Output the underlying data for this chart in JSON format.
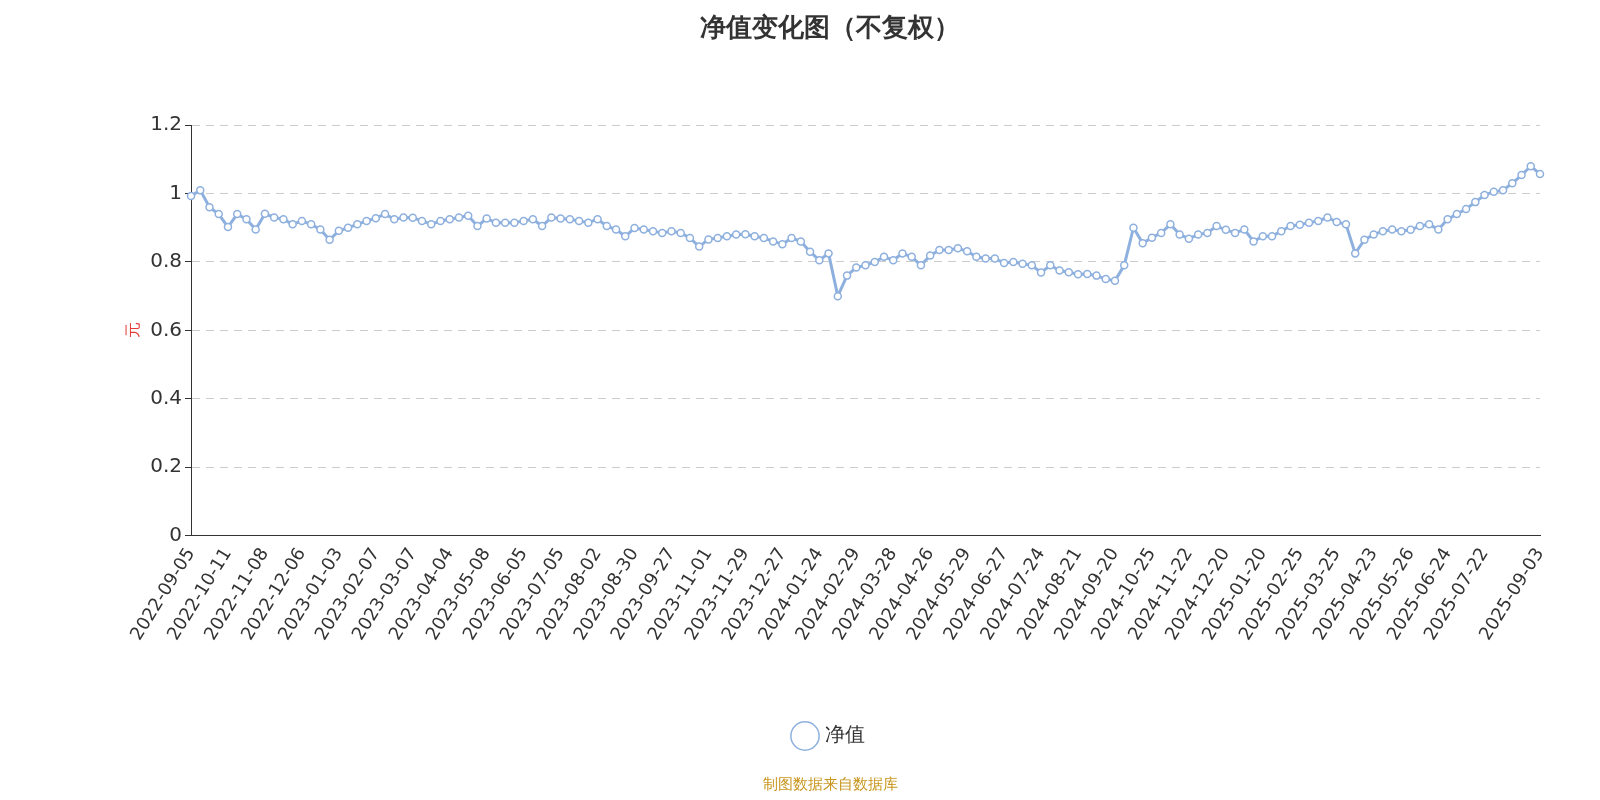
{
  "chart_data": {
    "type": "line",
    "title": "净值变化图（不复权）",
    "ylabel": "元",
    "categories": [
      "2022-09-05",
      null,
      null,
      null,
      "2022-10-11",
      null,
      null,
      null,
      "2022-11-08",
      null,
      null,
      null,
      "2022-12-06",
      null,
      null,
      null,
      "2023-01-03",
      null,
      null,
      null,
      "2023-02-07",
      null,
      null,
      null,
      "2023-03-07",
      null,
      null,
      null,
      "2023-04-04",
      null,
      null,
      null,
      "2023-05-08",
      null,
      null,
      null,
      "2023-06-05",
      null,
      null,
      null,
      "2023-07-05",
      null,
      null,
      null,
      "2023-08-02",
      null,
      null,
      null,
      "2023-08-30",
      null,
      null,
      null,
      "2023-09-27",
      null,
      null,
      null,
      "2023-11-01",
      null,
      null,
      null,
      "2023-11-29",
      null,
      null,
      null,
      "2023-12-27",
      null,
      null,
      null,
      "2024-01-24",
      null,
      null,
      null,
      "2024-02-29",
      null,
      null,
      null,
      "2024-03-28",
      null,
      null,
      null,
      "2024-04-26",
      null,
      null,
      null,
      "2024-05-29",
      null,
      null,
      null,
      "2024-06-27",
      null,
      null,
      null,
      "2024-07-24",
      null,
      null,
      null,
      "2024-08-21",
      null,
      null,
      null,
      "2024-09-20",
      null,
      null,
      null,
      "2024-10-25",
      null,
      null,
      null,
      "2024-11-22",
      null,
      null,
      null,
      "2024-12-20",
      null,
      null,
      null,
      "2025-01-20",
      null,
      null,
      null,
      "2025-02-25",
      null,
      null,
      null,
      "2025-03-25",
      null,
      null,
      null,
      "2025-04-23",
      null,
      null,
      null,
      "2025-05-26",
      null,
      null,
      null,
      "2025-06-24",
      null,
      null,
      null,
      "2025-07-22",
      null,
      null,
      null,
      null,
      null,
      "2025-09-03"
    ],
    "series": [
      {
        "name": "净值",
        "color": "#8eb0de",
        "values": [
          0.993,
          1.01,
          0.96,
          0.94,
          0.902,
          0.94,
          0.925,
          0.895,
          0.941,
          0.93,
          0.925,
          0.91,
          0.92,
          0.91,
          0.895,
          0.865,
          0.891,
          0.9,
          0.91,
          0.92,
          0.928,
          0.94,
          0.925,
          0.93,
          0.929,
          0.92,
          0.91,
          0.92,
          0.925,
          0.93,
          0.935,
          0.905,
          0.927,
          0.915,
          0.915,
          0.915,
          0.92,
          0.925,
          0.905,
          0.93,
          0.927,
          0.925,
          0.92,
          0.915,
          0.925,
          0.905,
          0.895,
          0.875,
          0.899,
          0.895,
          0.89,
          0.885,
          0.89,
          0.885,
          0.87,
          0.845,
          0.866,
          0.87,
          0.875,
          0.88,
          0.881,
          0.875,
          0.87,
          0.86,
          0.852,
          0.87,
          0.86,
          0.83,
          0.805,
          0.825,
          0.7,
          0.76,
          0.784,
          0.79,
          0.8,
          0.815,
          0.805,
          0.825,
          0.815,
          0.79,
          0.819,
          0.835,
          0.835,
          0.84,
          0.831,
          0.815,
          0.81,
          0.81,
          0.797,
          0.8,
          0.795,
          0.79,
          0.769,
          0.79,
          0.775,
          0.77,
          0.764,
          0.765,
          0.76,
          0.75,
          0.745,
          0.79,
          0.9,
          0.855,
          0.871,
          0.885,
          0.91,
          0.88,
          0.868,
          0.88,
          0.885,
          0.905,
          0.894,
          0.885,
          0.895,
          0.86,
          0.875,
          0.875,
          0.89,
          0.905,
          0.909,
          0.915,
          0.92,
          0.93,
          0.917,
          0.91,
          0.825,
          0.865,
          0.88,
          0.89,
          0.895,
          0.89,
          0.894,
          0.905,
          0.91,
          0.895,
          0.925,
          0.94,
          0.955,
          0.975,
          0.996,
          1.005,
          1.01,
          1.03,
          1.054,
          1.08,
          1.057
        ]
      }
    ],
    "ylim": [
      0,
      1.2
    ],
    "yticks": [
      0,
      0.2,
      0.4,
      0.6,
      0.8,
      1,
      1.2
    ],
    "grid": "y",
    "legend": "bottom",
    "marker": "circle",
    "line_style": "solid",
    "annotations": [
      "制图数据来自数据库"
    ]
  }
}
